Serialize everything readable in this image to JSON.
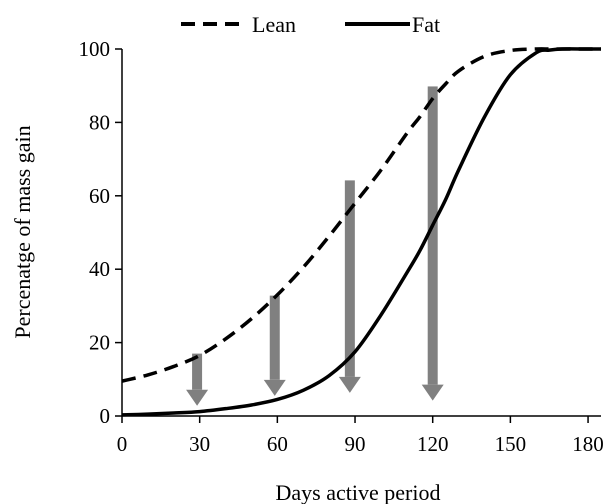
{
  "chart_data": {
    "type": "line",
    "title": "",
    "xlabel": "Days active period",
    "ylabel": "Percenatge of mass gain",
    "xlim": [
      0,
      185
    ],
    "ylim": [
      0,
      100
    ],
    "xticks": [
      0,
      30,
      60,
      90,
      120,
      150,
      180
    ],
    "yticks": [
      0,
      20,
      40,
      60,
      80,
      100
    ],
    "grid": false,
    "legend": {
      "position": "top-center",
      "orientation": "horizontal"
    },
    "colors": {
      "lines": "#000000",
      "arrows": "#808080"
    },
    "x": [
      0,
      10,
      20,
      30,
      40,
      50,
      60,
      70,
      80,
      90,
      100,
      110,
      115,
      120,
      125,
      130,
      140,
      150,
      160,
      165,
      170,
      180,
      185
    ],
    "series": [
      {
        "name": "Lean",
        "style": "dashed",
        "values": [
          9.5,
          11.2,
          13.5,
          16.5,
          21,
          26.5,
          33,
          40.5,
          49,
          58,
          67,
          77,
          81.5,
          86.5,
          90.5,
          94,
          98,
          99.6,
          100,
          100,
          100,
          100,
          100
        ]
      },
      {
        "name": "Fat",
        "style": "solid",
        "values": [
          0.3,
          0.5,
          0.8,
          1.2,
          2,
          3,
          4.5,
          7,
          11,
          17.5,
          27.5,
          39,
          45,
          52,
          59,
          67,
          81.5,
          93,
          99,
          99.7,
          100,
          100,
          100
        ]
      }
    ],
    "annotations": [
      {
        "type": "arrow",
        "x": 29,
        "y_from": 17,
        "y_to": 2.8,
        "direction": "down"
      },
      {
        "type": "arrow",
        "x": 59,
        "y_from": 32.8,
        "y_to": 5.5,
        "direction": "down"
      },
      {
        "type": "arrow",
        "x": 88,
        "y_from": 64.2,
        "y_to": 6.3,
        "direction": "down"
      },
      {
        "type": "arrow",
        "x": 120,
        "y_from": 89.8,
        "y_to": 4.2,
        "direction": "down"
      }
    ]
  }
}
